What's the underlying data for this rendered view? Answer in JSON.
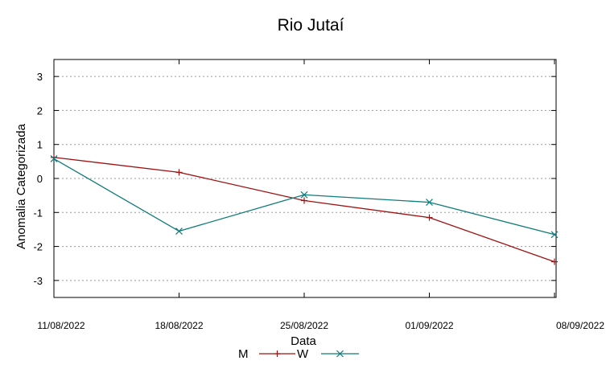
{
  "chart_data": {
    "type": "line",
    "title": "Rio Jutaí",
    "xlabel": "Data",
    "ylabel": "Anomalia Categorizada",
    "categories": [
      "11/08/2022",
      "18/08/2022",
      "25/08/2022",
      "01/09/2022",
      "08/09/2022"
    ],
    "yticks": [
      "3",
      "2",
      "1",
      "0",
      "-1",
      "-2",
      "-3"
    ],
    "ylim": [
      -3.5,
      3.5
    ],
    "grid": true,
    "legend_position": "bottom",
    "series": [
      {
        "name": "M",
        "marker": "+",
        "color": "#a01010",
        "values": [
          0.62,
          0.18,
          -0.65,
          -1.15,
          -2.45
        ]
      },
      {
        "name": "W",
        "marker": "x",
        "color": "#0f7b7b",
        "values": [
          0.58,
          -1.55,
          -0.48,
          -0.7,
          -1.65
        ]
      }
    ]
  }
}
